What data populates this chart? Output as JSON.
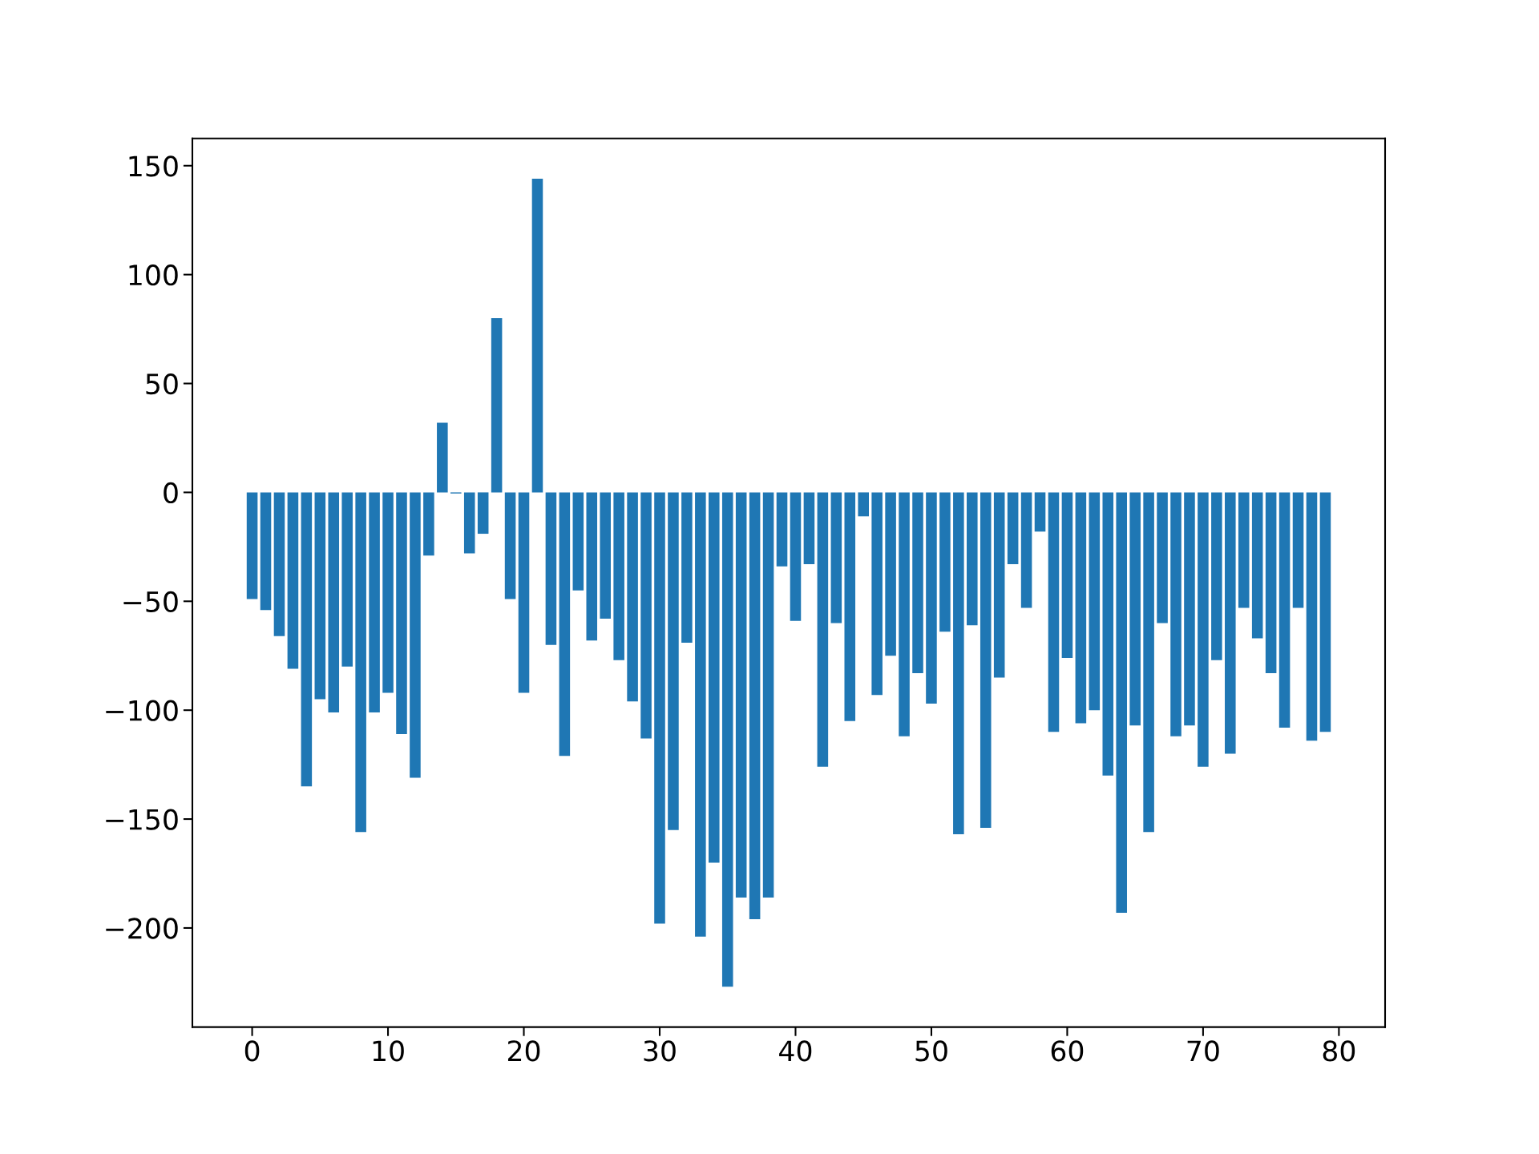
{
  "chart_data": {
    "type": "bar",
    "color": "#1f77b4",
    "x": [
      0,
      1,
      2,
      3,
      4,
      5,
      6,
      7,
      8,
      9,
      10,
      11,
      12,
      13,
      14,
      15,
      16,
      17,
      18,
      19,
      20,
      21,
      22,
      23,
      24,
      25,
      26,
      27,
      28,
      29,
      30,
      31,
      32,
      33,
      34,
      35,
      36,
      37,
      38,
      39,
      40,
      41,
      42,
      43,
      44,
      45,
      46,
      47,
      48,
      49,
      50,
      51,
      52,
      53,
      54,
      55,
      56,
      57,
      58,
      59,
      60,
      61,
      62,
      63,
      64,
      65,
      66,
      67,
      68,
      69,
      70,
      71,
      72,
      73,
      74,
      75,
      76,
      77,
      78,
      79
    ],
    "values": [
      -49,
      -54,
      -66,
      -81,
      -135,
      -95,
      -101,
      -80,
      -156,
      -101,
      -92,
      -111,
      -131,
      -29,
      32,
      -0.5,
      -28,
      -19,
      80,
      -49,
      -92,
      144,
      -70,
      -121,
      -45,
      -68,
      -58,
      -77,
      -96,
      -113,
      -198,
      -155,
      -69,
      -204,
      -170,
      -227,
      -186,
      -196,
      -186,
      -34,
      -59,
      -33,
      -126,
      -60,
      -105,
      -11,
      -93,
      -75,
      -112,
      -83,
      -97,
      -64,
      -157,
      -61,
      -154,
      -85,
      -33,
      -53,
      -18,
      -110,
      -76,
      -106,
      -100,
      -130,
      -193,
      -107,
      -156,
      -60,
      -112,
      -107,
      -126,
      -77,
      -120,
      -53,
      -67,
      -83,
      -108,
      -53,
      -114,
      -110
    ],
    "xlim": [
      -4.4,
      83.4
    ],
    "ylim": [
      -245.5,
      162.5
    ],
    "xticks": [
      0,
      10,
      20,
      30,
      40,
      50,
      60,
      70,
      80
    ],
    "yticks": [
      {
        "value": -200,
        "label": "−200"
      },
      {
        "value": -150,
        "label": "−150"
      },
      {
        "value": -100,
        "label": "−100"
      },
      {
        "value": -50,
        "label": "−50"
      },
      0,
      50,
      100,
      150
    ],
    "grid": false,
    "legend": false
  }
}
